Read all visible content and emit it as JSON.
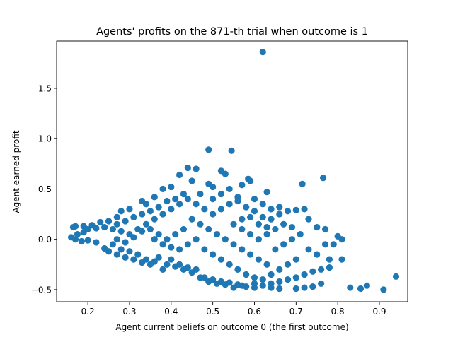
{
  "chart_data": {
    "type": "scatter",
    "title": "Agents' profits on the 871-th trial when outcome is 1",
    "xlabel": "Agent current beliefs on outcome 0 (the first outcome)",
    "ylabel": "Agent earned profit",
    "xlim": [
      0.125,
      0.968
    ],
    "ylim": [
      -0.62,
      1.97
    ],
    "xticks": [
      {
        "value": 0.2,
        "label": "0.2"
      },
      {
        "value": 0.3,
        "label": "0.3"
      },
      {
        "value": 0.4,
        "label": "0.4"
      },
      {
        "value": 0.5,
        "label": "0.5"
      },
      {
        "value": 0.6,
        "label": "0.6"
      },
      {
        "value": 0.7,
        "label": "0.7"
      },
      {
        "value": 0.8,
        "label": "0.8"
      },
      {
        "value": 0.9,
        "label": "0.9"
      }
    ],
    "yticks": [
      {
        "value": -0.5,
        "label": "−0.5"
      },
      {
        "value": 0.0,
        "label": "0.0"
      },
      {
        "value": 0.5,
        "label": "0.5"
      },
      {
        "value": 1.0,
        "label": "1.0"
      },
      {
        "value": 1.5,
        "label": "1.5"
      }
    ],
    "grid": false,
    "marker_color": "#1f77b4",
    "points": [
      [
        0.62,
        1.86
      ],
      [
        0.49,
        0.89
      ],
      [
        0.545,
        0.88
      ],
      [
        0.765,
        0.61
      ],
      [
        0.715,
        0.55
      ],
      [
        0.63,
        0.47
      ],
      [
        0.46,
        0.7
      ],
      [
        0.44,
        0.71
      ],
      [
        0.42,
        0.64
      ],
      [
        0.52,
        0.68
      ],
      [
        0.53,
        0.65
      ],
      [
        0.585,
        0.6
      ],
      [
        0.59,
        0.58
      ],
      [
        0.57,
        0.54
      ],
      [
        0.38,
        0.5
      ],
      [
        0.4,
        0.52
      ],
      [
        0.45,
        0.58
      ],
      [
        0.49,
        0.55
      ],
      [
        0.5,
        0.52
      ],
      [
        0.47,
        0.45
      ],
      [
        0.36,
        0.42
      ],
      [
        0.34,
        0.35
      ],
      [
        0.33,
        0.38
      ],
      [
        0.3,
        0.3
      ],
      [
        0.28,
        0.28
      ],
      [
        0.27,
        0.22
      ],
      [
        0.25,
        0.18
      ],
      [
        0.23,
        0.17
      ],
      [
        0.21,
        0.14
      ],
      [
        0.19,
        0.13
      ],
      [
        0.17,
        0.13
      ],
      [
        0.165,
        0.12
      ],
      [
        0.175,
        0.05
      ],
      [
        0.16,
        0.02
      ],
      [
        0.17,
        0.0
      ],
      [
        0.185,
        -0.02
      ],
      [
        0.19,
        0.07
      ],
      [
        0.2,
        0.1
      ],
      [
        0.22,
        0.11
      ],
      [
        0.24,
        0.12
      ],
      [
        0.26,
        0.1
      ],
      [
        0.28,
        0.08
      ],
      [
        0.3,
        0.05
      ],
      [
        0.32,
        0.1
      ],
      [
        0.34,
        0.15
      ],
      [
        0.36,
        0.2
      ],
      [
        0.38,
        0.25
      ],
      [
        0.4,
        0.3
      ],
      [
        0.42,
        0.35
      ],
      [
        0.44,
        0.4
      ],
      [
        0.46,
        0.35
      ],
      [
        0.48,
        0.3
      ],
      [
        0.5,
        0.25
      ],
      [
        0.52,
        0.3
      ],
      [
        0.54,
        0.35
      ],
      [
        0.56,
        0.38
      ],
      [
        0.58,
        0.32
      ],
      [
        0.6,
        0.28
      ],
      [
        0.62,
        0.22
      ],
      [
        0.64,
        0.2
      ],
      [
        0.66,
        0.25
      ],
      [
        0.68,
        0.28
      ],
      [
        0.7,
        0.29
      ],
      [
        0.72,
        0.3
      ],
      [
        0.73,
        0.2
      ],
      [
        0.75,
        0.12
      ],
      [
        0.77,
        0.1
      ],
      [
        0.8,
        0.03
      ],
      [
        0.81,
        0.0
      ],
      [
        0.79,
        -0.05
      ],
      [
        0.78,
        -0.2
      ],
      [
        0.81,
        -0.2
      ],
      [
        0.78,
        -0.28
      ],
      [
        0.76,
        -0.3
      ],
      [
        0.74,
        -0.32
      ],
      [
        0.72,
        -0.35
      ],
      [
        0.7,
        -0.38
      ],
      [
        0.68,
        -0.4
      ],
      [
        0.66,
        -0.42
      ],
      [
        0.64,
        -0.44
      ],
      [
        0.62,
        -0.46
      ],
      [
        0.6,
        -0.48
      ],
      [
        0.58,
        -0.47
      ],
      [
        0.56,
        -0.45
      ],
      [
        0.54,
        -0.43
      ],
      [
        0.52,
        -0.42
      ],
      [
        0.5,
        -0.4
      ],
      [
        0.48,
        -0.38
      ],
      [
        0.46,
        -0.3
      ],
      [
        0.44,
        -0.28
      ],
      [
        0.42,
        -0.25
      ],
      [
        0.4,
        -0.2
      ],
      [
        0.38,
        -0.3
      ],
      [
        0.36,
        -0.22
      ],
      [
        0.34,
        -0.2
      ],
      [
        0.32,
        -0.15
      ],
      [
        0.3,
        -0.12
      ],
      [
        0.28,
        -0.1
      ],
      [
        0.26,
        -0.05
      ],
      [
        0.24,
        -0.09
      ],
      [
        0.22,
        -0.03
      ],
      [
        0.2,
        -0.01
      ],
      [
        0.83,
        -0.48
      ],
      [
        0.855,
        -0.49
      ],
      [
        0.87,
        -0.46
      ],
      [
        0.91,
        -0.5
      ],
      [
        0.94,
        -0.37
      ],
      [
        0.7,
        -0.49
      ],
      [
        0.72,
        -0.48
      ],
      [
        0.74,
        -0.47
      ],
      [
        0.76,
        -0.44
      ],
      [
        0.66,
        -0.49
      ],
      [
        0.64,
        -0.48
      ],
      [
        0.6,
        -0.44
      ],
      [
        0.57,
        -0.46
      ],
      [
        0.55,
        -0.48
      ],
      [
        0.53,
        -0.45
      ],
      [
        0.51,
        -0.44
      ],
      [
        0.49,
        -0.42
      ],
      [
        0.47,
        -0.38
      ],
      [
        0.45,
        -0.33
      ],
      [
        0.43,
        -0.3
      ],
      [
        0.41,
        -0.27
      ],
      [
        0.39,
        -0.25
      ],
      [
        0.37,
        -0.18
      ],
      [
        0.35,
        -0.25
      ],
      [
        0.33,
        -0.23
      ],
      [
        0.31,
        -0.2
      ],
      [
        0.29,
        -0.18
      ],
      [
        0.27,
        -0.15
      ],
      [
        0.25,
        -0.12
      ],
      [
        0.45,
        0.2
      ],
      [
        0.47,
        0.15
      ],
      [
        0.49,
        0.1
      ],
      [
        0.51,
        0.05
      ],
      [
        0.53,
        0.0
      ],
      [
        0.55,
        -0.05
      ],
      [
        0.57,
        -0.1
      ],
      [
        0.59,
        -0.15
      ],
      [
        0.61,
        -0.2
      ],
      [
        0.63,
        -0.25
      ],
      [
        0.65,
        -0.1
      ],
      [
        0.67,
        -0.05
      ],
      [
        0.69,
        0.0
      ],
      [
        0.71,
        0.05
      ],
      [
        0.73,
        -0.1
      ],
      [
        0.75,
        -0.15
      ],
      [
        0.77,
        -0.05
      ],
      [
        0.43,
        0.1
      ],
      [
        0.41,
        0.05
      ],
      [
        0.39,
        0.0
      ],
      [
        0.37,
        0.05
      ],
      [
        0.35,
        0.1
      ],
      [
        0.33,
        0.08
      ],
      [
        0.31,
        0.02
      ],
      [
        0.29,
        -0.03
      ],
      [
        0.27,
        0.0
      ],
      [
        0.48,
        -0.1
      ],
      [
        0.5,
        -0.15
      ],
      [
        0.52,
        -0.2
      ],
      [
        0.54,
        -0.25
      ],
      [
        0.56,
        -0.3
      ],
      [
        0.58,
        -0.35
      ],
      [
        0.6,
        -0.38
      ],
      [
        0.62,
        -0.4
      ],
      [
        0.64,
        -0.35
      ],
      [
        0.66,
        -0.3
      ],
      [
        0.68,
        -0.25
      ],
      [
        0.7,
        -0.2
      ],
      [
        0.46,
        0.0
      ],
      [
        0.44,
        -0.05
      ],
      [
        0.42,
        -0.1
      ],
      [
        0.4,
        -0.08
      ],
      [
        0.38,
        -0.05
      ],
      [
        0.36,
        0.0
      ],
      [
        0.55,
        0.15
      ],
      [
        0.57,
        0.1
      ],
      [
        0.59,
        0.05
      ],
      [
        0.61,
        0.0
      ],
      [
        0.63,
        0.05
      ],
      [
        0.65,
        0.1
      ],
      [
        0.67,
        0.15
      ],
      [
        0.69,
        0.12
      ],
      [
        0.43,
        0.45
      ],
      [
        0.41,
        0.4
      ],
      [
        0.39,
        0.38
      ],
      [
        0.37,
        0.32
      ],
      [
        0.35,
        0.28
      ],
      [
        0.33,
        0.25
      ],
      [
        0.31,
        0.22
      ],
      [
        0.29,
        0.18
      ],
      [
        0.27,
        0.15
      ],
      [
        0.5,
        0.4
      ],
      [
        0.52,
        0.45
      ],
      [
        0.54,
        0.5
      ],
      [
        0.56,
        0.42
      ],
      [
        0.6,
        0.4
      ],
      [
        0.62,
        0.35
      ],
      [
        0.64,
        0.3
      ],
      [
        0.66,
        0.32
      ],
      [
        0.57,
        0.2
      ],
      [
        0.59,
        0.22
      ],
      [
        0.61,
        0.15
      ],
      [
        0.63,
        0.12
      ]
    ]
  }
}
